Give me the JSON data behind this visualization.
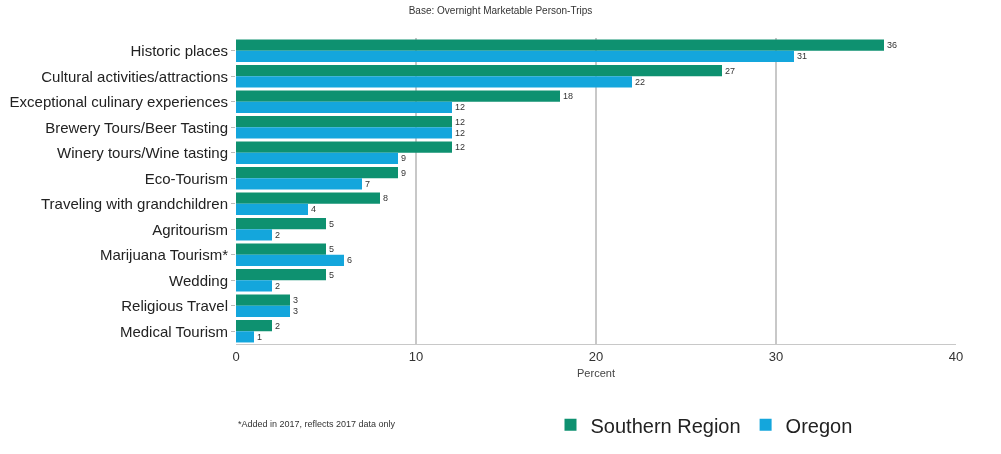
{
  "chart_data": {
    "type": "bar",
    "orientation": "horizontal",
    "title": "Base: Overnight Marketable Person-Trips",
    "xlabel": "Percent",
    "categories": [
      "Historic places",
      "Cultural activities/attractions",
      "Exceptional culinary experiences",
      "Brewery Tours/Beer Tasting",
      "Winery tours/Wine tasting",
      "Eco-Tourism",
      "Traveling with grandchildren",
      "Agritourism",
      "Marijuana Tourism*",
      "Wedding",
      "Religious Travel",
      "Medical Tourism"
    ],
    "series": [
      {
        "name": "Southern Region",
        "color": "#0e9170",
        "values": [
          36,
          27,
          18,
          12,
          12,
          9,
          8,
          5,
          5,
          5,
          3,
          2
        ]
      },
      {
        "name": "Oregon",
        "color": "#14a6dc",
        "values": [
          31,
          22,
          12,
          12,
          9,
          7,
          4,
          2,
          6,
          2,
          3,
          1
        ]
      }
    ],
    "xlim": [
      0,
      40
    ],
    "xticks": [
      0,
      10,
      20,
      30,
      40
    ],
    "grid": "x",
    "legend": "bottom",
    "data_labels": true,
    "annotations": [
      "*Added in 2017, reflects 2017 data only"
    ]
  }
}
